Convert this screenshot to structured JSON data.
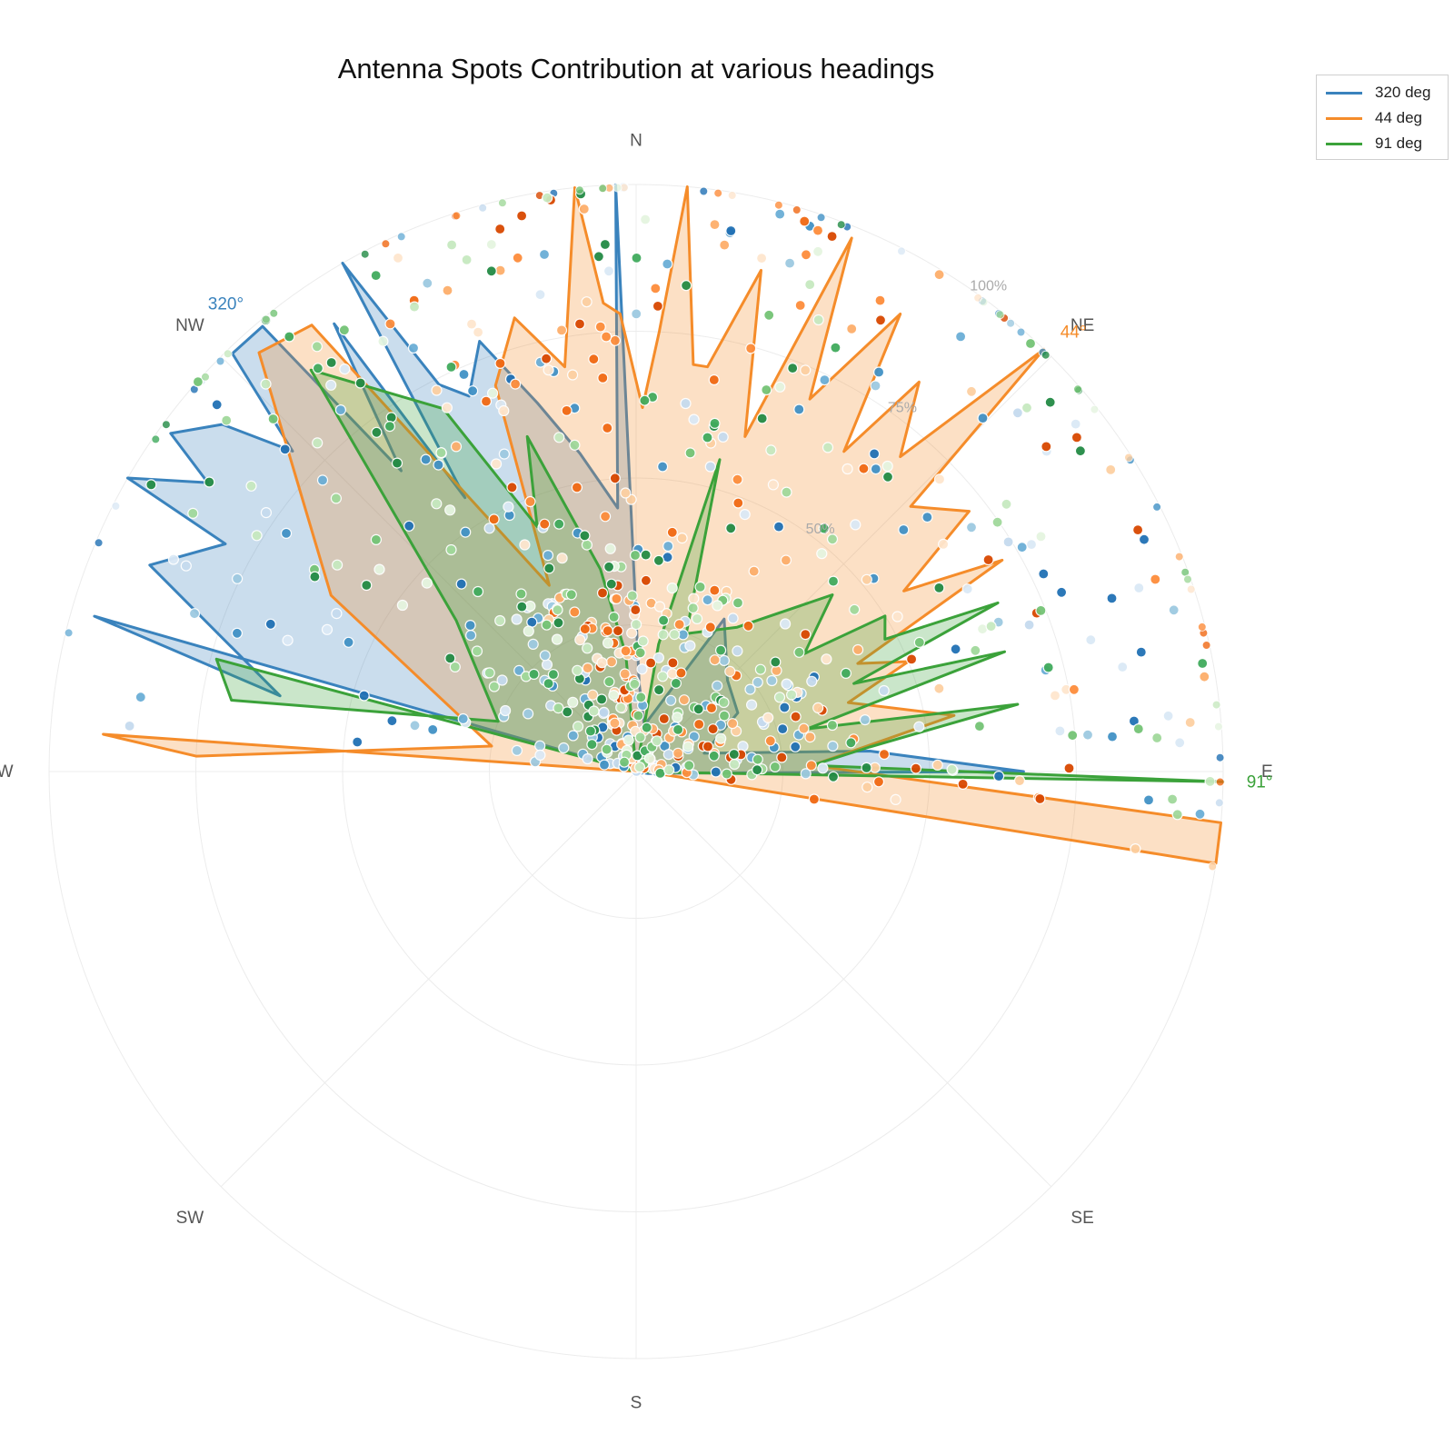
{
  "title": "Antenna Spots Contribution at various headings",
  "legend": [
    {
      "label": "320 deg",
      "color": "#3a83bd"
    },
    {
      "label": "44 deg",
      "color": "#f58c2a"
    },
    {
      "label": "91 deg",
      "color": "#3ba23a"
    }
  ],
  "chart_data": {
    "type": "polar",
    "title": "Antenna Spots Contribution at various headings",
    "directions": [
      {
        "label": "N",
        "angle": 0
      },
      {
        "label": "NE",
        "angle": 45
      },
      {
        "label": "E",
        "angle": 90
      },
      {
        "label": "SE",
        "angle": 135
      },
      {
        "label": "S",
        "angle": 180
      },
      {
        "label": "SW",
        "angle": 225
      },
      {
        "label": "W",
        "angle": 270
      },
      {
        "label": "NW",
        "angle": 315
      }
    ],
    "radial_ticks": [
      {
        "value": 0.5,
        "label": "50%"
      },
      {
        "value": 0.75,
        "label": "75%"
      },
      {
        "value": 1.0,
        "label": "100%"
      }
    ],
    "radial_range": [
      0,
      1
    ],
    "heading_markers": [
      {
        "angle": 320,
        "label": "320°",
        "color": "#3a83bd"
      },
      {
        "angle": 44,
        "label": "44°",
        "color": "#f58c2a"
      },
      {
        "angle": 91,
        "label": "91°",
        "color": "#3ba23a"
      }
    ],
    "series": [
      {
        "name": "320 deg",
        "color": "#3a83bd",
        "fill": "rgba(58,131,189,0.27)",
        "points": [
          [
            270,
            0.0
          ],
          [
            286,
            0.96
          ],
          [
            282,
            0.62
          ],
          [
            293,
            0.9
          ],
          [
            299,
            0.8
          ],
          [
            300,
            1.0
          ],
          [
            304,
            0.88
          ],
          [
            306,
            0.98
          ],
          [
            310,
            0.92
          ],
          [
            313,
            0.8
          ],
          [
            316,
            0.99
          ],
          [
            320,
            0.99
          ],
          [
            322,
            0.65
          ],
          [
            326,
            0.92
          ],
          [
            328,
            0.55
          ],
          [
            330,
            1.0
          ],
          [
            333,
            0.74
          ],
          [
            336,
            0.7
          ],
          [
            340,
            0.78
          ],
          [
            345,
            0.65
          ],
          [
            350,
            0.55
          ],
          [
            356,
            0.45
          ],
          [
            358,
            1.0
          ],
          [
            2,
            0.15
          ],
          [
            10,
            0.08
          ],
          [
            30,
            0.3
          ],
          [
            45,
            0.22
          ],
          [
            60,
            0.2
          ],
          [
            75,
            0.12
          ],
          [
            85,
            0.4
          ],
          [
            90,
            0.66
          ],
          [
            92,
            0.08
          ],
          [
            100,
            0.02
          ],
          [
            180,
            0.0
          ]
        ]
      },
      {
        "name": "44 deg",
        "color": "#f58c2a",
        "fill": "rgba(245,140,42,0.27)",
        "points": [
          [
            270,
            0.0
          ],
          [
            274,
            0.91
          ],
          [
            272,
            0.75
          ],
          [
            280,
            0.25
          ],
          [
            300,
            0.6
          ],
          [
            318,
            0.96
          ],
          [
            324,
            0.94
          ],
          [
            335,
            0.35
          ],
          [
            340,
            0.7
          ],
          [
            345,
            0.8
          ],
          [
            350,
            0.7
          ],
          [
            354,
            1.0
          ],
          [
            356,
            0.8
          ],
          [
            358,
            0.78
          ],
          [
            1,
            0.62
          ],
          [
            3,
            0.75
          ],
          [
            5,
            1.0
          ],
          [
            8,
            0.7
          ],
          [
            10,
            0.7
          ],
          [
            14,
            0.88
          ],
          [
            18,
            0.6
          ],
          [
            22,
            0.98
          ],
          [
            25,
            0.7
          ],
          [
            30,
            0.9
          ],
          [
            33,
            0.65
          ],
          [
            36,
            0.82
          ],
          [
            40,
            0.7
          ],
          [
            44,
            1.0
          ],
          [
            46,
            0.65
          ],
          [
            52,
            0.72
          ],
          [
            56,
            0.55
          ],
          [
            60,
            0.72
          ],
          [
            64,
            0.42
          ],
          [
            68,
            0.5
          ],
          [
            72,
            0.38
          ],
          [
            80,
            0.55
          ],
          [
            88,
            0.3
          ],
          [
            95,
            1.0
          ],
          [
            99,
            1.0
          ],
          [
            92,
            0.02
          ],
          [
            180,
            0.0
          ]
        ]
      },
      {
        "name": "91 deg",
        "color": "#3ba23a",
        "fill": "rgba(59,162,58,0.27)",
        "points": [
          [
            270,
            0.0
          ],
          [
            285,
            0.74
          ],
          [
            280,
            0.7
          ],
          [
            290,
            0.25
          ],
          [
            310,
            0.4
          ],
          [
            321,
            0.88
          ],
          [
            332,
            0.7
          ],
          [
            338,
            0.45
          ],
          [
            342,
            0.6
          ],
          [
            350,
            0.35
          ],
          [
            355,
            0.2
          ],
          [
            360,
            0.0
          ],
          [
            10,
            0.22
          ],
          [
            15,
            0.55
          ],
          [
            20,
            0.25
          ],
          [
            35,
            0.3
          ],
          [
            48,
            0.45
          ],
          [
            55,
            0.35
          ],
          [
            58,
            0.5
          ],
          [
            62,
            0.48
          ],
          [
            65,
            0.68
          ],
          [
            68,
            0.4
          ],
          [
            72,
            0.66
          ],
          [
            76,
            0.3
          ],
          [
            80,
            0.66
          ],
          [
            84,
            0.4
          ],
          [
            88,
            0.3
          ],
          [
            91,
            1.0
          ],
          [
            92,
            0.02
          ],
          [
            180,
            0.0
          ]
        ]
      }
    ]
  }
}
